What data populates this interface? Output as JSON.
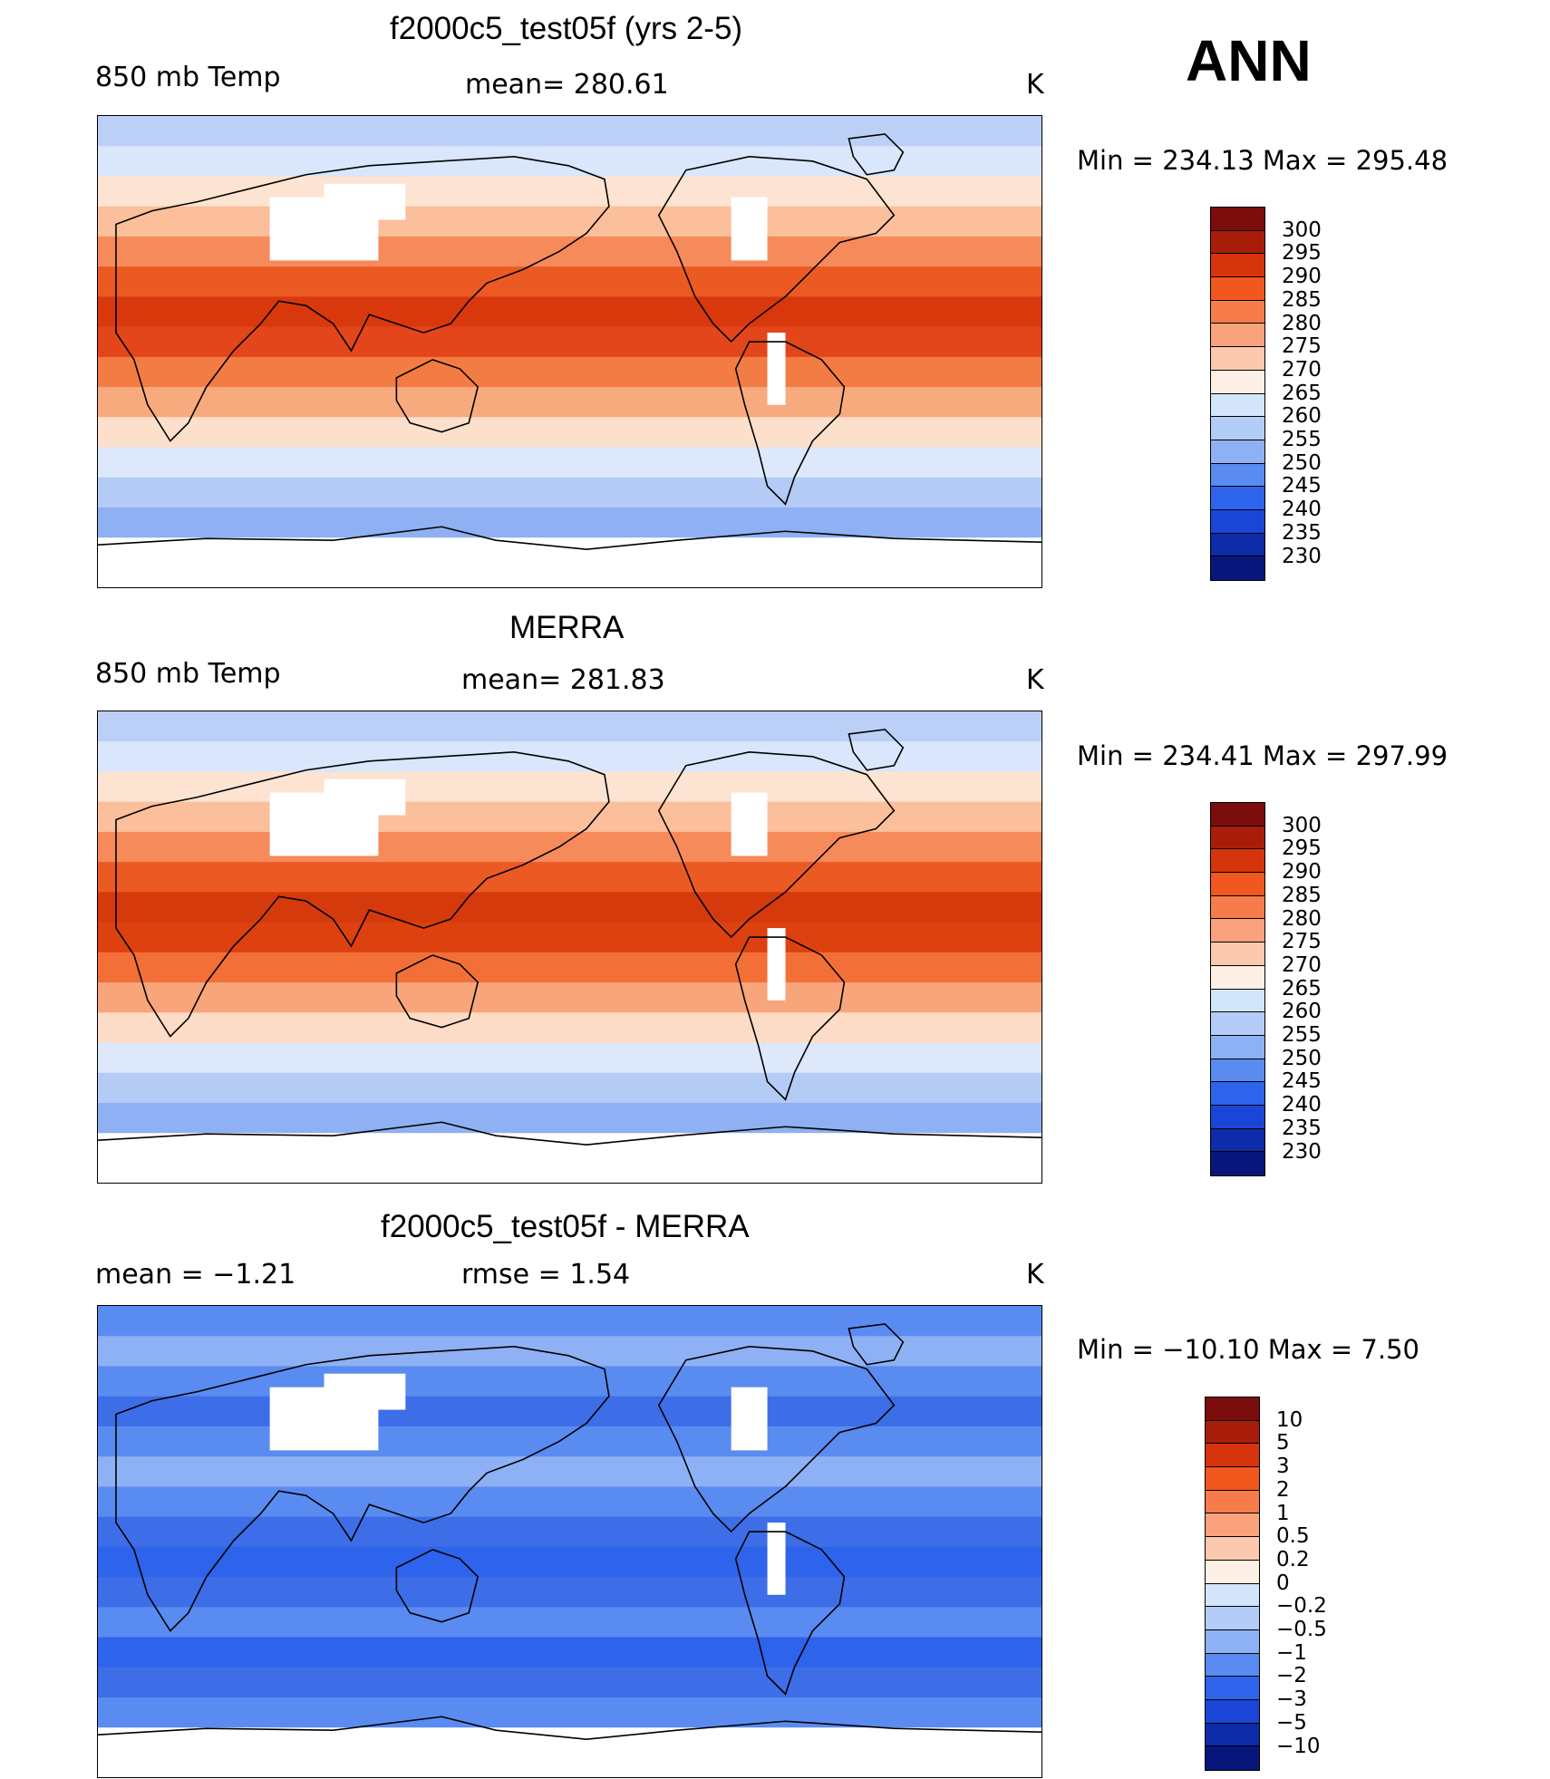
{
  "season": "ANN",
  "panels": [
    {
      "title": "f2000c5_test05f (yrs 2-5)",
      "left_label": "850 mb Temp",
      "center_label": "mean= 280.61",
      "units": "K",
      "minmax": "Min = 234.13 Max = 295.48",
      "colorbar": {
        "colors": [
          "#7b0d0d",
          "#a81d09",
          "#d6340c",
          "#f2571e",
          "#f77c4c",
          "#f9a27c",
          "#fcc9ae",
          "#fef0e4",
          "#d3e5fb",
          "#b3cdf8",
          "#8eb1f5",
          "#5a8bf0",
          "#2e63eb",
          "#1a46d8",
          "#0e2ba8",
          "#08167c"
        ],
        "ticks": [
          "300",
          "295",
          "290",
          "285",
          "280",
          "275",
          "270",
          "265",
          "260",
          "255",
          "250",
          "245",
          "240",
          "235",
          "230"
        ]
      },
      "bands": [
        "#bcd0f7",
        "#d9e6fb",
        "#fde3d2",
        "#fbbf9b",
        "#f68a5b",
        "#ec5a24",
        "#d9380c",
        "#e2461a",
        "#f37c44",
        "#f8aa7f",
        "#fce0cc",
        "#dde8fb",
        "#b4cbf6",
        "#8fb0f2"
      ]
    },
    {
      "title": "MERRA",
      "left_label": "850 mb Temp",
      "center_label": "mean= 281.83",
      "units": "K",
      "minmax": "Min = 234.41 Max = 297.99",
      "colorbar": {
        "colors": [
          "#7b0d0d",
          "#a81d09",
          "#d6340c",
          "#f2571e",
          "#f77c4c",
          "#f9a27c",
          "#fcc9ae",
          "#fef0e4",
          "#d3e5fb",
          "#b3cdf8",
          "#8eb1f5",
          "#5a8bf0",
          "#2e63eb",
          "#1a46d8",
          "#0e2ba8",
          "#08167c"
        ],
        "ticks": [
          "300",
          "295",
          "290",
          "285",
          "280",
          "275",
          "270",
          "265",
          "260",
          "255",
          "250",
          "245",
          "240",
          "235",
          "230"
        ]
      },
      "bands": [
        "#bcd0f7",
        "#d9e6fb",
        "#fde3d2",
        "#fbbf9b",
        "#f68a5b",
        "#ec5a24",
        "#d43a0c",
        "#dc410f",
        "#f27038",
        "#f8a57b",
        "#fcdbc7",
        "#dde8fb",
        "#b4cbf6",
        "#8fb0f2"
      ]
    },
    {
      "title": "f2000c5_test05f - MERRA",
      "left_label": "mean =   −1.21",
      "center_label": "rmse =    1.54",
      "units": "K",
      "minmax": "Min = −10.10 Max =    7.50",
      "colorbar": {
        "colors": [
          "#7b0d0d",
          "#a81d09",
          "#d6340c",
          "#f2571e",
          "#f77c4c",
          "#f9a27c",
          "#fcc9ae",
          "#fef0e4",
          "#d3e5fb",
          "#b3cdf8",
          "#8eb1f5",
          "#5a8bf0",
          "#2e63eb",
          "#1a46d8",
          "#0e2ba8",
          "#08167c"
        ],
        "ticks": [
          "10",
          "5",
          "3",
          "2",
          "1",
          "0.5",
          "0.2",
          "0",
          "−0.2",
          "−0.5",
          "−1",
          "−2",
          "−3",
          "−5",
          "−10"
        ]
      },
      "bands": [
        "#5a8bf0",
        "#8eb1f5",
        "#5a8bf0",
        "#3d6ee8",
        "#5a8bf0",
        "#8eb1f5",
        "#5a8bf0",
        "#3d6ee8",
        "#2e63eb",
        "#3d6ee8",
        "#5a8bf0",
        "#2e63eb",
        "#3d6ee8",
        "#5a8bf0"
      ]
    }
  ]
}
